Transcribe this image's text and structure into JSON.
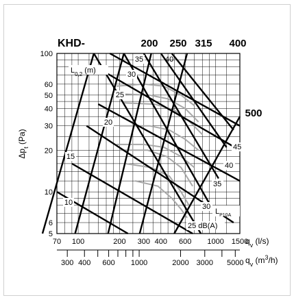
{
  "chart_data": {
    "type": "line",
    "title": "KHD-",
    "ylabel": "Δp_t (Pa)",
    "ylabel_main": "Δp",
    "ylabel_sub": "t",
    "ylabel_unit": " (Pa)",
    "xlabel_ls": "q_v (l/s)",
    "xlabel_ls_main": "q",
    "xlabel_ls_sub": "v",
    "xlabel_ls_unit": " (l/s)",
    "xlabel_m3h": "q_v (m³/h)",
    "xlabel_m3h_main": "q",
    "xlabel_m3h_sub": "v",
    "xlabel_m3h_unit_pre": " (m",
    "xlabel_m3h_unit_sup": "3",
    "xlabel_m3h_unit_post": "/h)",
    "y_scale": "log",
    "x_scale": "log",
    "ylim": [
      5,
      100
    ],
    "xlim_ls": [
      70,
      1500
    ],
    "y_ticks": [
      5,
      6,
      10,
      20,
      30,
      40,
      50,
      60,
      100
    ],
    "x_ticks_ls": [
      70,
      100,
      200,
      300,
      400,
      600,
      1000,
      1500
    ],
    "x_ticks_m3h": [
      300,
      400,
      600,
      1000,
      2000,
      3000,
      5000
    ],
    "grid": true,
    "sizes": [
      {
        "label": "200",
        "points": [
          [
            130,
            100
          ],
          [
            55,
            5
          ]
        ]
      },
      {
        "label": "250",
        "points": [
          [
            215,
            100
          ],
          [
            95,
            5
          ]
        ]
      },
      {
        "label": "315",
        "points": [
          [
            340,
            100
          ],
          [
            165,
            5
          ]
        ]
      },
      {
        "label": "400",
        "points": [
          [
            620,
            100
          ],
          [
            280,
            5
          ]
        ]
      },
      {
        "label": "500",
        "points": [
          [
            1500,
            35
          ],
          [
            500,
            5
          ]
        ]
      }
    ],
    "throw_lines": {
      "label_main": "L",
      "label_sub": "0,2",
      "label_unit": " (m)",
      "values": [
        {
          "label": "10",
          "points": [
            [
              70,
              10
            ],
            [
              230,
              5
            ]
          ]
        },
        {
          "label": "15",
          "points": [
            [
              90,
              16
            ],
            [
              680,
              5
            ]
          ]
        },
        {
          "label": "20",
          "points": [
            [
              115,
              30
            ],
            [
              1350,
              6
            ]
          ]
        },
        {
          "label": "25",
          "points": [
            [
              140,
              43
            ],
            [
              1500,
              12
            ]
          ]
        },
        {
          "label": "30",
          "points": [
            [
              150,
              75
            ],
            [
              1500,
              20
            ]
          ]
        },
        {
          "label": "35",
          "points": [
            [
              170,
              100
            ],
            [
              1500,
              30
            ]
          ]
        }
      ]
    },
    "sound_lines": {
      "label_main": "L",
      "label_sub": "P10A",
      "values": [
        {
          "label": "25 dB(A)",
          "points": [
            [
              130,
              100
            ],
            [
              780,
              5
            ]
          ]
        },
        {
          "label": "30",
          "points": [
            [
              215,
              100
            ],
            [
              950,
              7.5
            ]
          ]
        },
        {
          "label": "35",
          "points": [
            [
              300,
              100
            ],
            [
              1050,
              12.5
            ]
          ]
        },
        {
          "label": "40",
          "points": [
            [
              400,
              100
            ],
            [
              1200,
              21
            ]
          ]
        },
        {
          "label": "45",
          "points": [
            [
              480,
              100
            ],
            [
              1350,
              28
            ]
          ]
        }
      ],
      "label_40_top": "40"
    },
    "gray_curves": [
      [
        [
          190,
          58
        ],
        [
          300,
          60
        ],
        [
          420,
          58
        ],
        [
          560,
          50
        ],
        [
          700,
          42
        ]
      ],
      [
        [
          200,
          51
        ],
        [
          330,
          50
        ],
        [
          450,
          47
        ],
        [
          600,
          40
        ],
        [
          750,
          32
        ]
      ],
      [
        [
          210,
          44
        ],
        [
          360,
          43
        ],
        [
          500,
          39
        ],
        [
          650,
          32
        ],
        [
          800,
          26
        ]
      ],
      [
        [
          200,
          30
        ],
        [
          330,
          30
        ],
        [
          460,
          28
        ],
        [
          600,
          24
        ],
        [
          750,
          20
        ]
      ],
      [
        [
          190,
          22
        ],
        [
          300,
          22
        ],
        [
          420,
          21
        ],
        [
          560,
          18
        ],
        [
          700,
          15
        ]
      ],
      [
        [
          200,
          20
        ],
        [
          320,
          20
        ],
        [
          440,
          18
        ],
        [
          560,
          15
        ],
        [
          680,
          11
        ]
      ],
      [
        [
          220,
          16
        ],
        [
          340,
          15
        ],
        [
          460,
          13
        ],
        [
          560,
          10
        ],
        [
          640,
          8
        ]
      ],
      [
        [
          260,
          12
        ],
        [
          380,
          11
        ],
        [
          480,
          9
        ],
        [
          560,
          7.5
        ],
        [
          620,
          6.5
        ]
      ]
    ]
  }
}
